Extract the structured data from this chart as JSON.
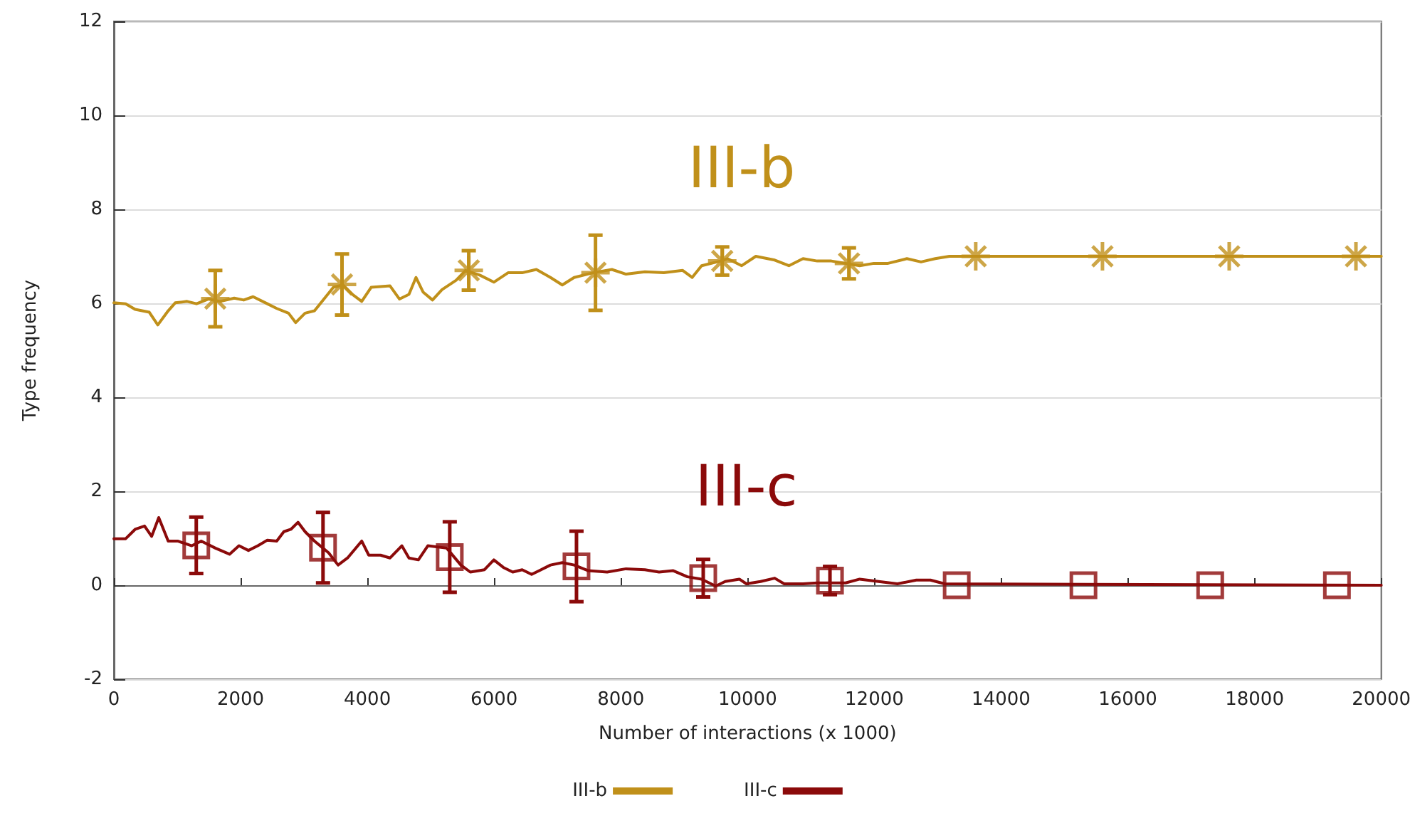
{
  "chart_data": {
    "type": "line",
    "xlabel": "Number of interactions (x 1000)",
    "ylabel": "Type frequency",
    "xlim": [
      0,
      20000
    ],
    "xticks": [
      0,
      2000,
      4000,
      6000,
      8000,
      10000,
      12000,
      14000,
      16000,
      18000,
      20000
    ],
    "ylim": [
      -2,
      12
    ],
    "yticks": [
      -2,
      0,
      2,
      4,
      6,
      8,
      10,
      12
    ],
    "grid": "y",
    "legend": "bottom",
    "annotations": [
      "III-b",
      "III-c"
    ],
    "series": [
      {
        "name": "III-b",
        "color": "#c0901a",
        "marker": "none",
        "x": [
          0,
          186,
          335,
          559,
          693,
          857,
          968,
          1155,
          1304,
          1490,
          1676,
          1899,
          2049,
          2197,
          2421,
          2570,
          2756,
          2868,
          3017,
          3166,
          3315,
          3464,
          3613,
          3762,
          3911,
          4060,
          4358,
          4507,
          4656,
          4767,
          4879,
          5028,
          5177,
          5401,
          5549,
          5773,
          5996,
          6220,
          6443,
          6667,
          6890,
          7076,
          7263,
          7561,
          7858,
          8082,
          8380,
          8678,
          8976,
          9125,
          9274,
          9572,
          9683,
          9907,
          10130,
          10428,
          10652,
          10875,
          11099,
          11322,
          11769,
          11993,
          12216,
          12514,
          12737,
          12961,
          13184,
          20000
        ],
        "values": [
          6.01,
          5.99,
          5.87,
          5.81,
          5.54,
          5.84,
          6.01,
          6.04,
          5.99,
          6.09,
          6.04,
          6.11,
          6.07,
          6.14,
          5.99,
          5.89,
          5.79,
          5.59,
          5.79,
          5.84,
          6.09,
          6.34,
          6.39,
          6.19,
          6.04,
          6.34,
          6.37,
          6.09,
          6.19,
          6.55,
          6.24,
          6.07,
          6.29,
          6.49,
          6.7,
          6.6,
          6.45,
          6.65,
          6.65,
          6.72,
          6.55,
          6.39,
          6.55,
          6.65,
          6.72,
          6.62,
          6.67,
          6.65,
          6.7,
          6.55,
          6.8,
          6.9,
          6.95,
          6.8,
          7.0,
          6.92,
          6.8,
          6.95,
          6.9,
          6.9,
          6.8,
          6.85,
          6.85,
          6.95,
          6.88,
          6.95,
          7.0,
          7.0
        ]
      },
      {
        "type": "scatter",
        "color": "#c0901a",
        "marker": "cross",
        "x": [
          1600,
          3600,
          5600,
          7600,
          9600,
          11600,
          13600,
          15600,
          17600,
          19600
        ],
        "values": [
          6.1,
          6.4,
          6.7,
          6.65,
          6.9,
          6.85,
          7,
          7,
          7,
          7
        ],
        "errors": [
          0.6,
          0.65,
          0.42,
          0.8,
          0.3,
          0.33,
          null,
          null,
          null,
          null
        ]
      },
      {
        "name": "III-c",
        "color": "#8b0a0a",
        "marker": "none",
        "x": [
          0,
          186,
          335,
          484,
          596,
          708,
          857,
          1006,
          1229,
          1378,
          1602,
          1825,
          1974,
          2123,
          2272,
          2421,
          2570,
          2682,
          2793,
          2905,
          3017,
          3166,
          3389,
          3538,
          3687,
          3911,
          4022,
          4208,
          4358,
          4544,
          4656,
          4805,
          4954,
          5252,
          5475,
          5624,
          5848,
          5996,
          6145,
          6294,
          6443,
          6592,
          6741,
          6890,
          7076,
          7263,
          7486,
          7784,
          8082,
          8380,
          8603,
          8827,
          9050,
          9274,
          9497,
          9646,
          9870,
          9981,
          10205,
          10428,
          10577,
          10875,
          11099,
          11546,
          11769,
          12067,
          12365,
          12663,
          12886,
          13110,
          20000
        ],
        "values": [
          0.99,
          0.99,
          1.19,
          1.26,
          1.04,
          1.44,
          0.94,
          0.94,
          0.84,
          0.94,
          0.79,
          0.66,
          0.84,
          0.74,
          0.84,
          0.96,
          0.94,
          1.14,
          1.19,
          1.34,
          1.14,
          0.94,
          0.69,
          0.43,
          0.58,
          0.94,
          0.64,
          0.64,
          0.58,
          0.84,
          0.58,
          0.54,
          0.84,
          0.79,
          0.43,
          0.28,
          0.33,
          0.54,
          0.38,
          0.28,
          0.33,
          0.23,
          0.33,
          0.43,
          0.48,
          0.43,
          0.31,
          0.28,
          0.35,
          0.33,
          0.28,
          0.31,
          0.18,
          0.13,
          -0.02,
          0.08,
          0.13,
          0.03,
          0.08,
          0.15,
          0.03,
          0.03,
          0.05,
          0.05,
          0.13,
          0.08,
          0.03,
          0.11,
          0.11,
          0.03,
          0
        ]
      },
      {
        "type": "scatter",
        "color": "#8b0a0a",
        "marker": "square",
        "x": [
          1300,
          3300,
          5300,
          7300,
          9300,
          11300,
          13300,
          15300,
          17300,
          19300
        ],
        "values": [
          0.85,
          0.8,
          0.6,
          0.4,
          0.15,
          0.1,
          0,
          0,
          0,
          0
        ],
        "errors": [
          0.6,
          0.75,
          0.75,
          0.75,
          0.4,
          0.3,
          null,
          null,
          null,
          null
        ]
      }
    ]
  }
}
